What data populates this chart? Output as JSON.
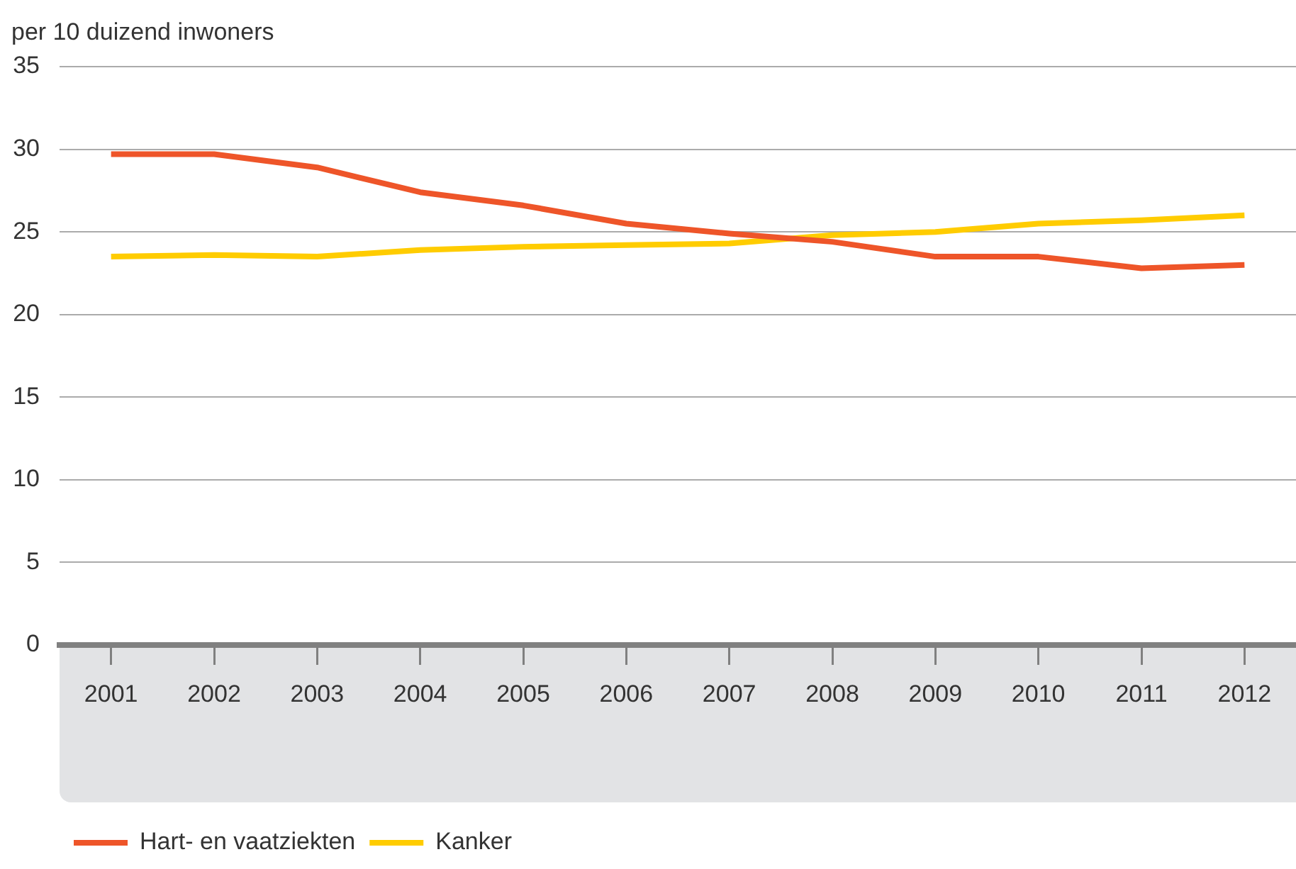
{
  "chart_data": {
    "type": "line",
    "ylabel": "per 10 duizend inwoners",
    "categories": [
      "2001",
      "2002",
      "2003",
      "2004",
      "2005",
      "2006",
      "2007",
      "2008",
      "2009",
      "2010",
      "2011",
      "2012"
    ],
    "series": [
      {
        "name": "Hart- en vaatziekten",
        "color": "#ee5529",
        "values": [
          29.7,
          29.7,
          28.9,
          27.4,
          26.6,
          25.5,
          24.9,
          24.4,
          23.5,
          23.5,
          22.8,
          23.0
        ]
      },
      {
        "name": "Kanker",
        "color": "#ffcc00",
        "values": [
          23.5,
          23.6,
          23.5,
          23.9,
          24.1,
          24.2,
          24.3,
          24.8,
          25.0,
          25.5,
          25.7,
          26.0
        ]
      }
    ],
    "ylim": [
      0,
      35
    ],
    "yticks": [
      0,
      5,
      10,
      15,
      20,
      25,
      30,
      35
    ],
    "grid": "y",
    "legend": "bottom left",
    "marker": "none"
  }
}
